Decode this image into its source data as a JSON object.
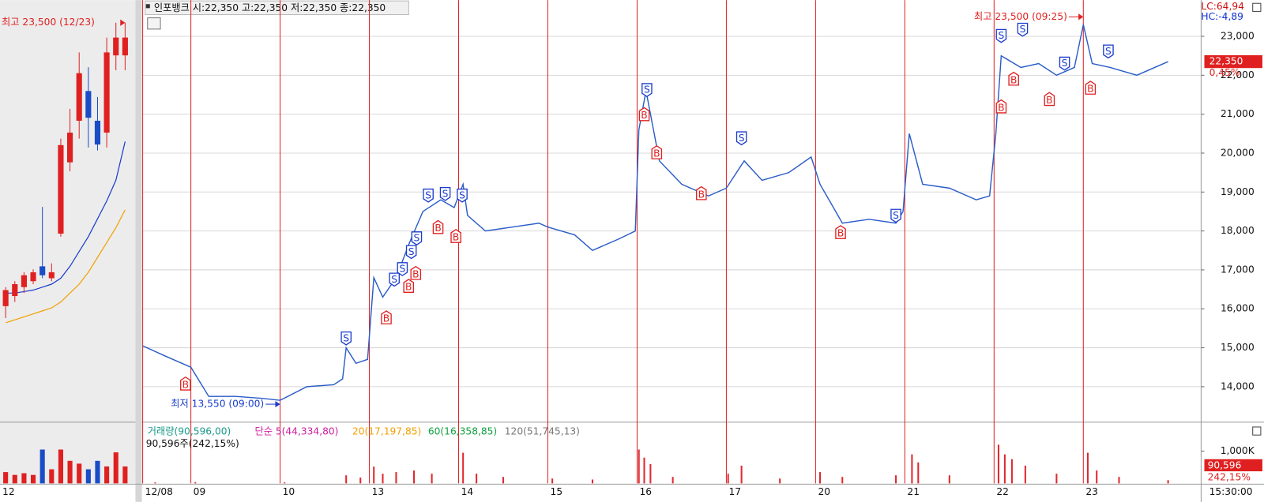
{
  "header": {
    "title": "인포뱅크 시:22,350 고:22,350 저:22,350 종:22,350"
  },
  "chart_data": {
    "type": "line",
    "xlim": [
      0.46,
      12.32
    ],
    "xticks": [
      {
        "value": 0.46,
        "label": "12/08"
      },
      {
        "value": 1,
        "label": "09"
      },
      {
        "value": 2,
        "label": "10"
      },
      {
        "value": 3,
        "label": "13"
      },
      {
        "value": 4,
        "label": "14"
      },
      {
        "value": 5,
        "label": "15"
      },
      {
        "value": 6,
        "label": "16"
      },
      {
        "value": 7,
        "label": "17"
      },
      {
        "value": 8,
        "label": "20"
      },
      {
        "value": 9,
        "label": "21"
      },
      {
        "value": 10,
        "label": "22"
      },
      {
        "value": 11,
        "label": "23"
      }
    ],
    "ylim": [
      13130,
      23930
    ],
    "yticks": [
      {
        "value": 14000,
        "label": "14,000"
      },
      {
        "value": 15000,
        "label": "15,000"
      },
      {
        "value": 16000,
        "label": "16,000"
      },
      {
        "value": 17000,
        "label": "17,000"
      },
      {
        "value": 18000,
        "label": "18,000"
      },
      {
        "value": 19000,
        "label": "19,000"
      },
      {
        "value": 20000,
        "label": "20,000"
      },
      {
        "value": 21000,
        "label": "21,000"
      },
      {
        "value": 22000,
        "label": "22,000"
      },
      {
        "value": 23000,
        "label": "23,000"
      }
    ],
    "grid": true,
    "series": [
      {
        "color": "#2a5cc8",
        "x": [
          0.46,
          0.7,
          0.9,
          1.0,
          1.2,
          1.5,
          1.8,
          2.0,
          2.3,
          2.6,
          2.7,
          2.74,
          2.85,
          2.98,
          3.05,
          3.15,
          3.3,
          3.45,
          3.6,
          3.8,
          3.95,
          4.05,
          4.1,
          4.3,
          4.6,
          4.9,
          5.0,
          5.3,
          5.5,
          5.8,
          5.98,
          6.02,
          6.1,
          6.25,
          6.5,
          6.8,
          7.0,
          7.2,
          7.4,
          7.7,
          7.95,
          8.05,
          8.3,
          8.6,
          8.9,
          8.98,
          9.05,
          9.2,
          9.5,
          9.8,
          9.95,
          10.02,
          10.08,
          10.3,
          10.5,
          10.7,
          10.9,
          11.0,
          11.1,
          11.3,
          11.6,
          11.95
        ],
        "values": [
          15050,
          14800,
          14600,
          14500,
          13750,
          13750,
          13700,
          13650,
          14000,
          14050,
          14200,
          15000,
          14600,
          14700,
          16800,
          16300,
          16800,
          17700,
          18500,
          18800,
          18600,
          19200,
          18400,
          18000,
          18100,
          18200,
          18100,
          17900,
          17500,
          17800,
          18000,
          20600,
          21600,
          19800,
          19200,
          18900,
          19100,
          19800,
          19300,
          19500,
          19900,
          19200,
          18200,
          18300,
          18200,
          18500,
          20500,
          19200,
          19100,
          18800,
          18900,
          20500,
          22500,
          22200,
          22300,
          22000,
          22200,
          23300,
          22300,
          22200,
          22000,
          22350
        ]
      }
    ],
    "signals": [
      {
        "x": 0.94,
        "y": 14060,
        "label": "B"
      },
      {
        "x": 3.19,
        "y": 15760,
        "label": "B"
      },
      {
        "x": 3.44,
        "y": 16570,
        "label": "B"
      },
      {
        "x": 3.52,
        "y": 16900,
        "label": "B"
      },
      {
        "x": 3.77,
        "y": 18080,
        "label": "B"
      },
      {
        "x": 3.97,
        "y": 17850,
        "label": "B"
      },
      {
        "x": 6.08,
        "y": 20980,
        "label": "B"
      },
      {
        "x": 6.22,
        "y": 20000,
        "label": "B"
      },
      {
        "x": 6.72,
        "y": 18950,
        "label": "B"
      },
      {
        "x": 8.28,
        "y": 17950,
        "label": "B"
      },
      {
        "x": 10.08,
        "y": 21180,
        "label": "B"
      },
      {
        "x": 10.22,
        "y": 21890,
        "label": "B"
      },
      {
        "x": 10.62,
        "y": 21370,
        "label": "B"
      },
      {
        "x": 11.08,
        "y": 21660,
        "label": "B"
      },
      {
        "x": 2.74,
        "y": 15260,
        "label": "S"
      },
      {
        "x": 3.28,
        "y": 16770,
        "label": "S"
      },
      {
        "x": 3.37,
        "y": 17040,
        "label": "S"
      },
      {
        "x": 3.47,
        "y": 17480,
        "label": "S"
      },
      {
        "x": 3.53,
        "y": 17830,
        "label": "S"
      },
      {
        "x": 3.66,
        "y": 18930,
        "label": "S"
      },
      {
        "x": 3.85,
        "y": 18970,
        "label": "S"
      },
      {
        "x": 4.04,
        "y": 18930,
        "label": "S"
      },
      {
        "x": 6.11,
        "y": 21640,
        "label": "S"
      },
      {
        "x": 7.17,
        "y": 20400,
        "label": "S"
      },
      {
        "x": 8.9,
        "y": 18410,
        "label": "S"
      },
      {
        "x": 10.08,
        "y": 23030,
        "label": "S"
      },
      {
        "x": 10.32,
        "y": 23190,
        "label": "S"
      },
      {
        "x": 10.79,
        "y": 22320,
        "label": "S"
      },
      {
        "x": 11.28,
        "y": 22630,
        "label": "S"
      }
    ],
    "high": {
      "text": "최고 23,500 (09:25)",
      "x": 11.0,
      "value": 23500
    },
    "low": {
      "text": "최저 13,550 (09:00)",
      "x": 2.0,
      "value": 13550
    },
    "last_price": {
      "value": 22350,
      "label": "22,350"
    },
    "change": "0,45%",
    "lc": "LC:64,94",
    "hc": "HC:-4,89"
  },
  "volume_chart": {
    "type": "bar",
    "color": "#e0282e",
    "ylim": [
      0,
      1825
    ],
    "yticks": [
      {
        "value": 1000,
        "label": "1,000K"
      }
    ],
    "x": [
      0.6,
      1.05,
      2.05,
      2.74,
      2.9,
      3.05,
      3.15,
      3.3,
      3.5,
      3.7,
      4.05,
      4.2,
      4.5,
      5.05,
      5.5,
      6.02,
      6.08,
      6.15,
      6.4,
      7.02,
      7.17,
      7.6,
      8.05,
      8.3,
      8.9,
      9.08,
      9.15,
      9.5,
      10.05,
      10.12,
      10.2,
      10.35,
      10.7,
      11.05,
      11.15,
      11.4,
      11.95
    ],
    "values": [
      30,
      40,
      30,
      250,
      180,
      520,
      300,
      350,
      400,
      300,
      950,
      300,
      200,
      150,
      120,
      1050,
      800,
      600,
      200,
      300,
      550,
      150,
      350,
      200,
      250,
      900,
      650,
      250,
      1200,
      900,
      750,
      550,
      300,
      950,
      400,
      200,
      100
    ],
    "legend": [
      "거래량(90,596,00)",
      "단순 5(44,334,80)",
      "20(17,197,85)",
      "60(16,358,85)",
      "120(51,745,13)"
    ],
    "summary": "90,596주(242,15%)",
    "last_label": "90,596",
    "ratio_label": "242,15%",
    "time_label": "15:30:00"
  },
  "daily_chart": {
    "type": "candlestick",
    "ylim": [
      10110,
      24260
    ],
    "open": [
      13960,
      14300,
      14600,
      14800,
      15300,
      14900,
      16400,
      18800,
      20200,
      21200,
      20200,
      19800,
      22400,
      22400
    ],
    "close": [
      14500,
      14700,
      15000,
      15100,
      15000,
      15100,
      19380,
      19800,
      21800,
      20300,
      19400,
      22500,
      23000,
      23000
    ],
    "high": [
      14600,
      14800,
      15100,
      15200,
      17300,
      15400,
      19600,
      20600,
      22500,
      22000,
      21000,
      23000,
      23500,
      23500
    ],
    "low": [
      13560,
      14100,
      14400,
      14700,
      14900,
      14800,
      16300,
      18500,
      19600,
      19300,
      19200,
      19300,
      21900,
      21900
    ],
    "ma20": [
      14400,
      14400,
      14450,
      14500,
      14600,
      14700,
      14900,
      15300,
      15800,
      16300,
      16900,
      17500,
      18200,
      19500
    ],
    "ma60": [
      13400,
      13500,
      13600,
      13700,
      13800,
      13900,
      14100,
      14400,
      14700,
      15100,
      15600,
      16100,
      16600,
      17200
    ],
    "vlim": [
      0,
      100
    ],
    "volume": [
      20,
      15,
      18,
      15,
      60,
      25,
      60,
      40,
      35,
      25,
      40,
      30,
      55,
      30
    ],
    "annotation": "최고 23,500 (12/23)",
    "bottom_label": "12"
  }
}
